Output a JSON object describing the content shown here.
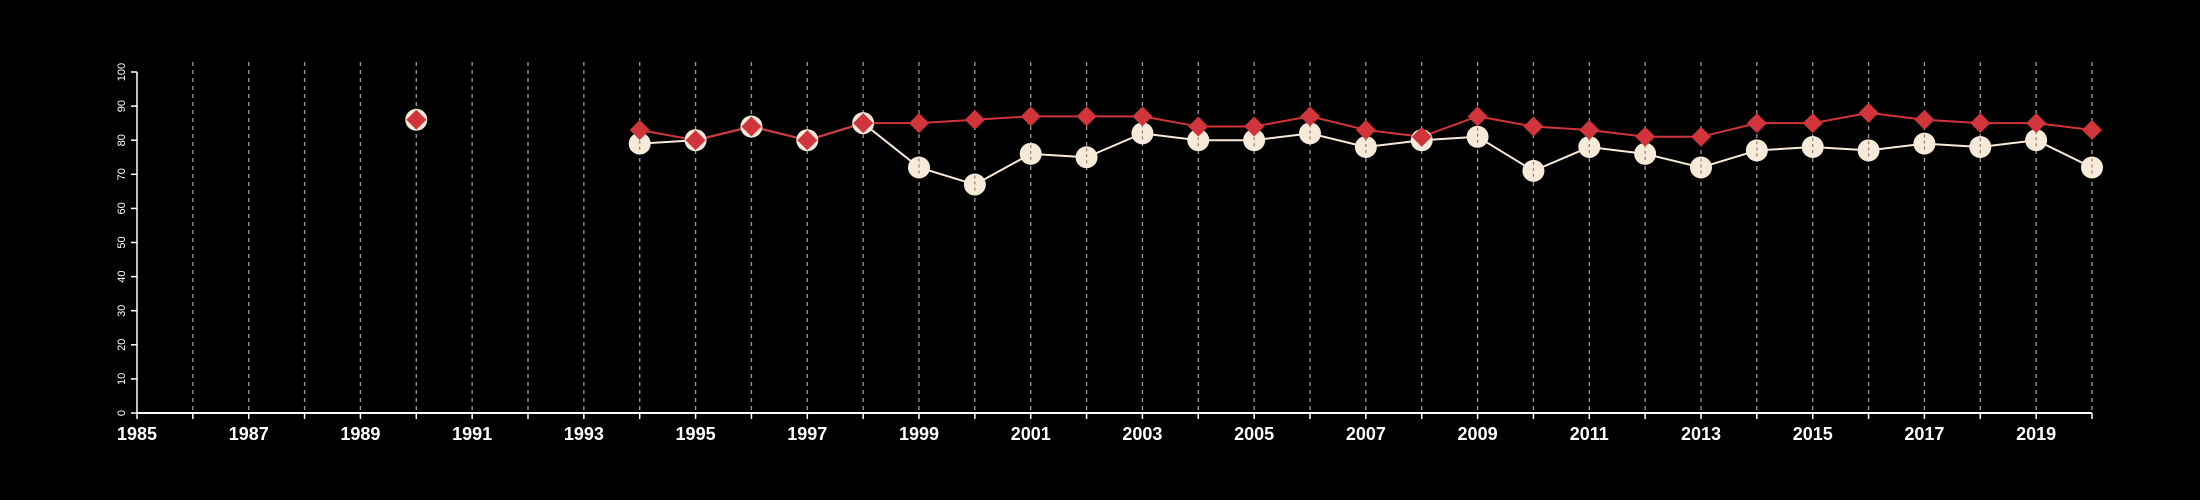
{
  "chart_data": {
    "type": "line",
    "title": "",
    "xlabel": "",
    "ylabel": "",
    "xlim": [
      1985,
      2020
    ],
    "ylim": [
      0,
      100
    ],
    "x_ticks": [
      1985,
      1987,
      1989,
      1991,
      1993,
      1995,
      1997,
      1999,
      2001,
      2003,
      2005,
      2007,
      2009,
      2011,
      2013,
      2015,
      2017,
      2019
    ],
    "y_ticks": [
      0,
      10,
      20,
      30,
      40,
      50,
      60,
      70,
      80,
      90,
      100
    ],
    "grid": "vertical-dashed",
    "legend": "none",
    "colors": {
      "background": "#000000",
      "axis": "#ffffff",
      "grid": "#9a9a9a",
      "red_series": "#d1343a",
      "light_series": "#f7ead8"
    },
    "series": [
      {
        "marker": "diamond",
        "color": "#d1343a",
        "points": [
          [
            1990,
            86
          ],
          [
            1994,
            83
          ],
          [
            1995,
            80
          ],
          [
            1996,
            84
          ],
          [
            1997,
            80
          ],
          [
            1998,
            85
          ],
          [
            1999,
            85
          ],
          [
            2000,
            86
          ],
          [
            2001,
            87
          ],
          [
            2002,
            87
          ],
          [
            2003,
            87
          ],
          [
            2004,
            84
          ],
          [
            2005,
            84
          ],
          [
            2006,
            87
          ],
          [
            2007,
            83
          ],
          [
            2008,
            81
          ],
          [
            2009,
            87
          ],
          [
            2010,
            84
          ],
          [
            2011,
            83
          ],
          [
            2012,
            81
          ],
          [
            2013,
            81
          ],
          [
            2014,
            85
          ],
          [
            2015,
            85
          ],
          [
            2016,
            88
          ],
          [
            2017,
            86
          ],
          [
            2018,
            85
          ],
          [
            2019,
            85
          ],
          [
            2020,
            83
          ]
        ]
      },
      {
        "marker": "circle",
        "color": "#f7ead8",
        "points": [
          [
            1990,
            86
          ],
          [
            1994,
            79
          ],
          [
            1995,
            80
          ],
          [
            1996,
            84
          ],
          [
            1997,
            80
          ],
          [
            1998,
            85
          ],
          [
            1999,
            72
          ],
          [
            2000,
            67
          ],
          [
            2001,
            76
          ],
          [
            2002,
            75
          ],
          [
            2003,
            82
          ],
          [
            2004,
            80
          ],
          [
            2005,
            80
          ],
          [
            2006,
            82
          ],
          [
            2007,
            78
          ],
          [
            2008,
            80
          ],
          [
            2009,
            81
          ],
          [
            2010,
            71
          ],
          [
            2011,
            78
          ],
          [
            2012,
            76
          ],
          [
            2013,
            72
          ],
          [
            2014,
            77
          ],
          [
            2015,
            78
          ],
          [
            2016,
            77
          ],
          [
            2017,
            79
          ],
          [
            2018,
            78
          ],
          [
            2019,
            80
          ],
          [
            2020,
            72
          ]
        ]
      }
    ]
  }
}
